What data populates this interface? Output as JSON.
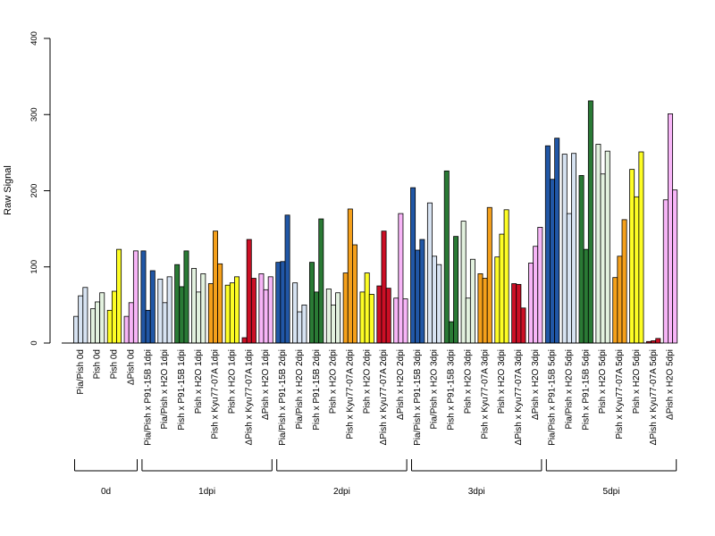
{
  "chart_data": {
    "type": "bar",
    "ylabel": "Raw Signal",
    "ylim": [
      0,
      400
    ],
    "yticks": [
      0,
      100,
      200,
      300,
      400
    ],
    "colors": {
      "blue": "#2157a6",
      "lightblue": "#d7e3f2",
      "green": "#2a7a35",
      "lightgreen": "#e3f2df",
      "orange": "#f5a01b",
      "yellow": "#fdfd25",
      "red": "#cc0f25",
      "pink": "#f7b5f7"
    },
    "groups": [
      {
        "label": "0d",
        "categories": [
          {
            "label": "Pia/Pish 0d",
            "color": "lightblue",
            "values": [
              35,
              62,
              73
            ]
          },
          {
            "label": "Pish 0d",
            "color": "lightgreen",
            "values": [
              45,
              54,
              66
            ]
          },
          {
            "label": "Pish 0d",
            "color": "yellow",
            "values": [
              43,
              68,
              123
            ]
          },
          {
            "label": "ΔPish 0d",
            "color": "pink",
            "values": [
              35,
              53,
              121
            ]
          }
        ]
      },
      {
        "label": "1dpi",
        "categories": [
          {
            "label": "Pia/Pish x P91-15B 1dpi",
            "color": "blue",
            "values": [
              121,
              43,
              95
            ]
          },
          {
            "label": "Pia/Pish x H2O 1dpi",
            "color": "lightblue",
            "values": [
              84,
              53,
              87
            ]
          },
          {
            "label": "Pish x P91-15B 1dpi",
            "color": "green",
            "values": [
              103,
              74,
              121
            ]
          },
          {
            "label": "Pish x H2O 1dpi",
            "color": "lightgreen",
            "values": [
              98,
              67,
              91
            ]
          },
          {
            "label": "Pish x Kyu77-07A 1dpi",
            "color": "orange",
            "values": [
              78,
              147,
              104
            ]
          },
          {
            "label": "Pish x H2O 1dpi",
            "color": "yellow",
            "values": [
              76,
              79,
              87
            ]
          },
          {
            "label": "ΔPish x Kyu77-07A 1dpi",
            "color": "red",
            "values": [
              7,
              136,
              85
            ]
          },
          {
            "label": "ΔPish x H2O 1dpi",
            "color": "pink",
            "values": [
              91,
              70,
              87
            ]
          }
        ]
      },
      {
        "label": "2dpi",
        "categories": [
          {
            "label": "Pia/Pish x P91-15B 2dpi",
            "color": "blue",
            "values": [
              106,
              107,
              168
            ]
          },
          {
            "label": "Pia/Pish x H2O 2dpi",
            "color": "lightblue",
            "values": [
              79,
              41,
              50
            ]
          },
          {
            "label": "Pish x P91-15B 2dpi",
            "color": "green",
            "values": [
              106,
              67,
              163
            ]
          },
          {
            "label": "Pish x H2O 2dpi",
            "color": "lightgreen",
            "values": [
              71,
              50,
              66
            ]
          },
          {
            "label": "Pish x Kyu77-07A 2dpi",
            "color": "orange",
            "values": [
              92,
              176,
              129
            ]
          },
          {
            "label": "Pish x H2O 2dpi",
            "color": "yellow",
            "values": [
              67,
              92,
              64
            ]
          },
          {
            "label": "ΔPish x Kyu77-07A 2dpi",
            "color": "red",
            "values": [
              75,
              147,
              72
            ]
          },
          {
            "label": "ΔPish x H2O 2dpi",
            "color": "pink",
            "values": [
              59,
              170,
              58
            ]
          }
        ]
      },
      {
        "label": "3dpi",
        "categories": [
          {
            "label": "Pia/Pish x P91-15B 3dpi",
            "color": "blue",
            "values": [
              204,
              122,
              136
            ]
          },
          {
            "label": "Pia/Pish x H2O 3dpi",
            "color": "lightblue",
            "values": [
              184,
              114,
              103
            ]
          },
          {
            "label": "Pish x P91-15B 3dpi",
            "color": "green",
            "values": [
              226,
              28,
              140
            ]
          },
          {
            "label": "Pish x H2O 3dpi",
            "color": "lightgreen",
            "values": [
              160,
              59,
              110
            ]
          },
          {
            "label": "Pish x Kyu77-07A 3dpi",
            "color": "orange",
            "values": [
              91,
              85,
              178
            ]
          },
          {
            "label": "Pish x H2O 3dpi",
            "color": "yellow",
            "values": [
              113,
              143,
              175
            ]
          },
          {
            "label": "ΔPish x Kyu77-07A 3dpi",
            "color": "red",
            "values": [
              78,
              77,
              46
            ]
          },
          {
            "label": "ΔPish x H2O 3dpi",
            "color": "pink",
            "values": [
              105,
              127,
              152
            ]
          }
        ]
      },
      {
        "label": "5dpi",
        "categories": [
          {
            "label": "Pia/Pish x P91-15B 5dpi",
            "color": "blue",
            "values": [
              259,
              215,
              269
            ]
          },
          {
            "label": "Pia/Pish x H2O 5dpi",
            "color": "lightblue",
            "values": [
              248,
              170,
              249
            ]
          },
          {
            "label": "Pish x P91-15B 5dpi",
            "color": "green",
            "values": [
              220,
              123,
              318
            ]
          },
          {
            "label": "Pish x H2O 5dpi",
            "color": "lightgreen",
            "values": [
              261,
              222,
              252
            ]
          },
          {
            "label": "Pish x Kyu77-07A 5dpi",
            "color": "orange",
            "values": [
              86,
              114,
              162
            ]
          },
          {
            "label": "Pish x H2O 5dpi",
            "color": "yellow",
            "values": [
              228,
              192,
              251
            ]
          },
          {
            "label": "ΔPish x Kyu77-07A 5dpi",
            "color": "red",
            "values": [
              2,
              3,
              6
            ]
          },
          {
            "label": "ΔPish x H2O 5dpi",
            "color": "pink",
            "values": [
              188,
              301,
              201
            ]
          }
        ]
      }
    ]
  }
}
